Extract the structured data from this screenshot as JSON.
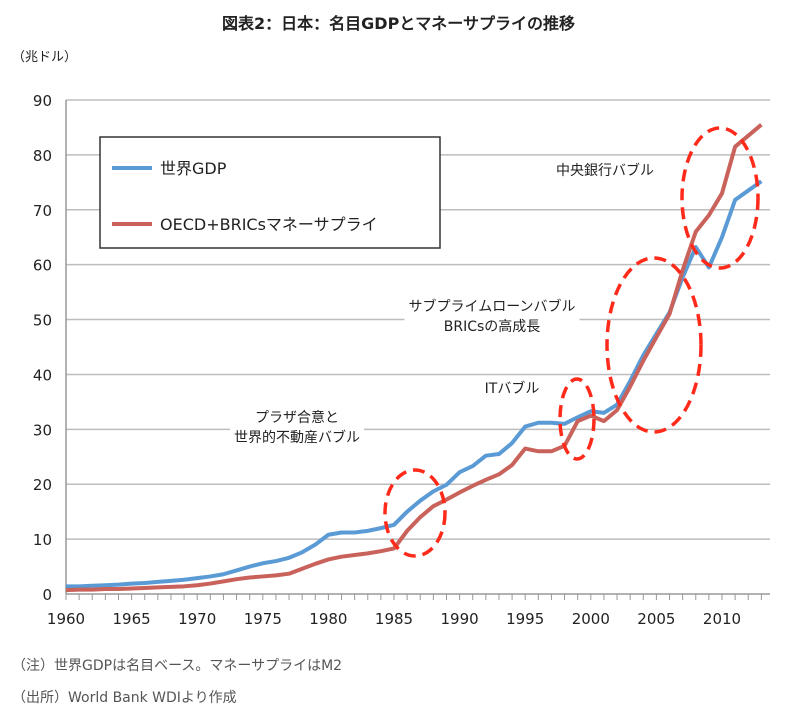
{
  "title": "図表2：日本：名目GDPとマネーサプライの推移",
  "unit_label": "（兆ドル）",
  "notes": [
    "（注）世界GDPは名目ベース。マネーサプライはM2",
    "（出所）World Bank WDIより作成"
  ],
  "chart_data": {
    "type": "line",
    "title": "図表2：日本：名目GDPとマネーサプライの推移",
    "ylabel": "（兆ドル）",
    "xlabel": "",
    "xlim": [
      1960,
      2013
    ],
    "ylim": [
      0,
      90
    ],
    "x_ticks": [
      1960,
      1965,
      1970,
      1975,
      1980,
      1985,
      1990,
      1995,
      2000,
      2005,
      2010
    ],
    "y_ticks": [
      0,
      10,
      20,
      30,
      40,
      50,
      60,
      70,
      80,
      90
    ],
    "grid": true,
    "legend_position": "top-left",
    "x": [
      1960,
      1961,
      1962,
      1963,
      1964,
      1965,
      1966,
      1967,
      1968,
      1969,
      1970,
      1971,
      1972,
      1973,
      1974,
      1975,
      1976,
      1977,
      1978,
      1979,
      1980,
      1981,
      1982,
      1983,
      1984,
      1985,
      1986,
      1987,
      1988,
      1989,
      1990,
      1991,
      1992,
      1993,
      1994,
      1995,
      1996,
      1997,
      1998,
      1999,
      2000,
      2001,
      2002,
      2003,
      2004,
      2005,
      2006,
      2007,
      2008,
      2009,
      2010,
      2011,
      2012,
      2013
    ],
    "series": [
      {
        "name": "世界GDP",
        "color": "#5b9bd5",
        "values": [
          1.4,
          1.4,
          1.5,
          1.6,
          1.7,
          1.9,
          2.0,
          2.2,
          2.4,
          2.6,
          2.9,
          3.2,
          3.6,
          4.3,
          5.0,
          5.6,
          6.0,
          6.6,
          7.6,
          9.0,
          10.8,
          11.2,
          11.2,
          11.5,
          12.0,
          12.6,
          15.0,
          17.0,
          18.7,
          19.9,
          22.2,
          23.3,
          25.2,
          25.5,
          27.5,
          30.5,
          31.2,
          31.2,
          31.0,
          32.2,
          33.3,
          33.0,
          34.5,
          38.8,
          43.5,
          47.4,
          51.3,
          57.7,
          63.2,
          59.5,
          65.0,
          71.8,
          73.5,
          75.2
        ]
      },
      {
        "name": "OECD+BRICsマネーサプライ",
        "color": "#c9625a",
        "values": [
          0.7,
          0.8,
          0.8,
          0.9,
          0.9,
          1.0,
          1.1,
          1.2,
          1.3,
          1.4,
          1.6,
          1.9,
          2.3,
          2.7,
          3.0,
          3.2,
          3.4,
          3.7,
          4.6,
          5.5,
          6.3,
          6.8,
          7.1,
          7.4,
          7.8,
          8.3,
          11.5,
          14.0,
          16.0,
          17.2,
          18.5,
          19.7,
          20.8,
          21.8,
          23.5,
          26.5,
          26.0,
          26.0,
          27.0,
          31.5,
          32.5,
          31.5,
          33.5,
          37.8,
          42.5,
          46.8,
          51.0,
          59.0,
          66.0,
          69.0,
          73.0,
          81.5,
          83.5,
          85.5
        ]
      }
    ],
    "annotations": [
      {
        "text": [
          "プラザ合意と",
          "世界的不動産バブル"
        ]
      },
      {
        "text": [
          "ITバブル"
        ]
      },
      {
        "text": [
          "サブプライムローンバブル",
          "BRICsの高成長"
        ]
      },
      {
        "text": [
          "中央銀行バブル"
        ]
      }
    ],
    "highlight_color": "#ff2a1a"
  }
}
